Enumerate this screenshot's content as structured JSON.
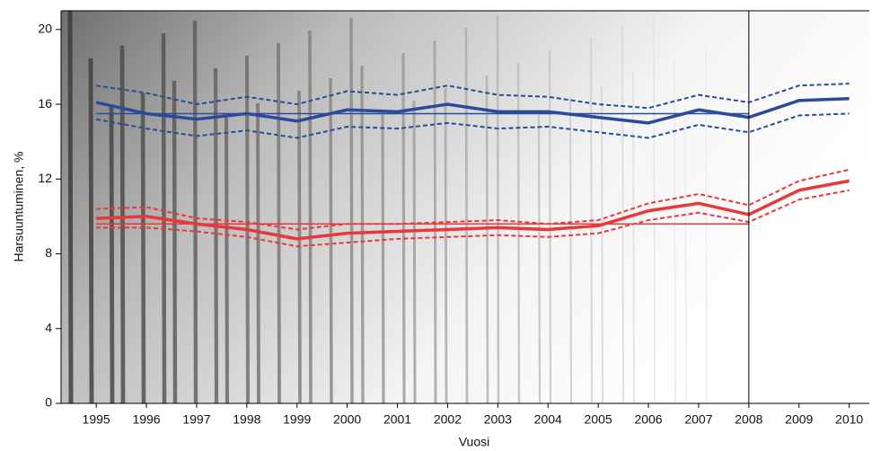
{
  "chart_data": {
    "type": "line",
    "y_label": "Harsuuntuminen, %",
    "x_label": "Vuosi",
    "x": [
      1995,
      1996,
      1997,
      1998,
      1999,
      2000,
      2001,
      2002,
      2003,
      2004,
      2005,
      2006,
      2007,
      2008,
      2009,
      2010
    ],
    "xlim": [
      1994.3,
      2010.4
    ],
    "xticks": [
      1995,
      1996,
      1997,
      1998,
      1999,
      2000,
      2001,
      2002,
      2003,
      2004,
      2005,
      2006,
      2007,
      2008,
      2009,
      2010
    ],
    "ylim": [
      0,
      21
    ],
    "yticks": [
      0,
      4,
      8,
      12,
      16,
      20
    ],
    "vline": 2008,
    "series": [
      {
        "color": "#2b4a9a",
        "dash": false,
        "width": 3.5,
        "values": [
          16.1,
          15.5,
          15.2,
          15.5,
          15.1,
          15.7,
          15.6,
          16.0,
          15.6,
          15.6,
          15.3,
          15.0,
          15.7,
          15.3,
          16.2,
          16.3
        ]
      },
      {
        "color": "#2b4a9a",
        "dash": true,
        "width": 2,
        "values": [
          17.0,
          16.6,
          16.0,
          16.4,
          16.0,
          16.7,
          16.5,
          17.0,
          16.5,
          16.4,
          16.0,
          15.8,
          16.5,
          16.1,
          17.0,
          17.1
        ]
      },
      {
        "color": "#2b4a9a",
        "dash": true,
        "width": 2,
        "values": [
          15.2,
          14.7,
          14.3,
          14.6,
          14.2,
          14.8,
          14.7,
          15.0,
          14.7,
          14.8,
          14.5,
          14.2,
          14.9,
          14.5,
          15.4,
          15.5
        ]
      },
      {
        "color": "#2b4a9a",
        "dash": false,
        "width": 1.5,
        "values": [
          15.5,
          15.5,
          15.5,
          15.5,
          15.5,
          15.5,
          15.5,
          15.5,
          15.5,
          15.5,
          15.5,
          15.5,
          15.5,
          15.5,
          null,
          null
        ]
      },
      {
        "color": "#e8383b",
        "dash": false,
        "width": 3.5,
        "values": [
          9.9,
          10.0,
          9.6,
          9.3,
          8.8,
          9.1,
          9.2,
          9.3,
          9.4,
          9.3,
          9.5,
          10.3,
          10.7,
          10.1,
          11.4,
          11.9
        ]
      },
      {
        "color": "#e8383b",
        "dash": true,
        "width": 2,
        "values": [
          10.4,
          10.5,
          9.9,
          9.7,
          9.3,
          9.6,
          9.6,
          9.7,
          9.8,
          9.6,
          9.8,
          10.7,
          11.2,
          10.6,
          11.9,
          12.5
        ]
      },
      {
        "color": "#e8383b",
        "dash": true,
        "width": 2,
        "values": [
          9.4,
          9.4,
          9.2,
          8.9,
          8.4,
          8.6,
          8.8,
          8.9,
          9.0,
          8.9,
          9.1,
          9.8,
          10.2,
          9.7,
          10.9,
          11.4
        ]
      },
      {
        "color": "#e8383b",
        "dash": false,
        "width": 1.5,
        "values": [
          9.6,
          9.6,
          9.6,
          9.6,
          9.6,
          9.6,
          9.6,
          9.6,
          9.6,
          9.6,
          9.6,
          9.6,
          9.6,
          9.6,
          null,
          null
        ]
      }
    ]
  }
}
